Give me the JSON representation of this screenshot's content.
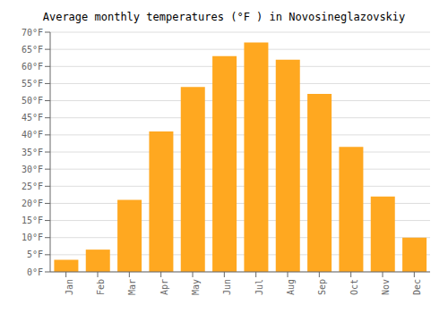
{
  "chart_data": {
    "type": "bar",
    "title": "Average monthly temperatures (°F ) in Novosineglazovskiy",
    "categories": [
      "Jan",
      "Feb",
      "Mar",
      "Apr",
      "May",
      "Jun",
      "Jul",
      "Aug",
      "Sep",
      "Oct",
      "Nov",
      "Dec"
    ],
    "values": [
      3.5,
      6.5,
      21,
      41,
      54,
      63,
      67,
      62,
      52,
      36.5,
      22,
      10
    ],
    "color": "#FFA820",
    "ylim": [
      0,
      70
    ],
    "yticks": [
      {
        "value": 0,
        "label": "0°F"
      },
      {
        "value": 5,
        "label": "5°F"
      },
      {
        "value": 10,
        "label": "10°F"
      },
      {
        "value": 15,
        "label": "15°F"
      },
      {
        "value": 20,
        "label": "20°F"
      },
      {
        "value": 25,
        "label": "25°F"
      },
      {
        "value": 30,
        "label": "30°F"
      },
      {
        "value": 35,
        "label": "35°F"
      },
      {
        "value": 40,
        "label": "40°F"
      },
      {
        "value": 45,
        "label": "45°F"
      },
      {
        "value": 50,
        "label": "50°F"
      },
      {
        "value": 55,
        "label": "55°F"
      },
      {
        "value": 60,
        "label": "60°F"
      },
      {
        "value": 65,
        "label": "65°F"
      },
      {
        "value": 70,
        "label": "70°F"
      }
    ],
    "grid": true
  }
}
